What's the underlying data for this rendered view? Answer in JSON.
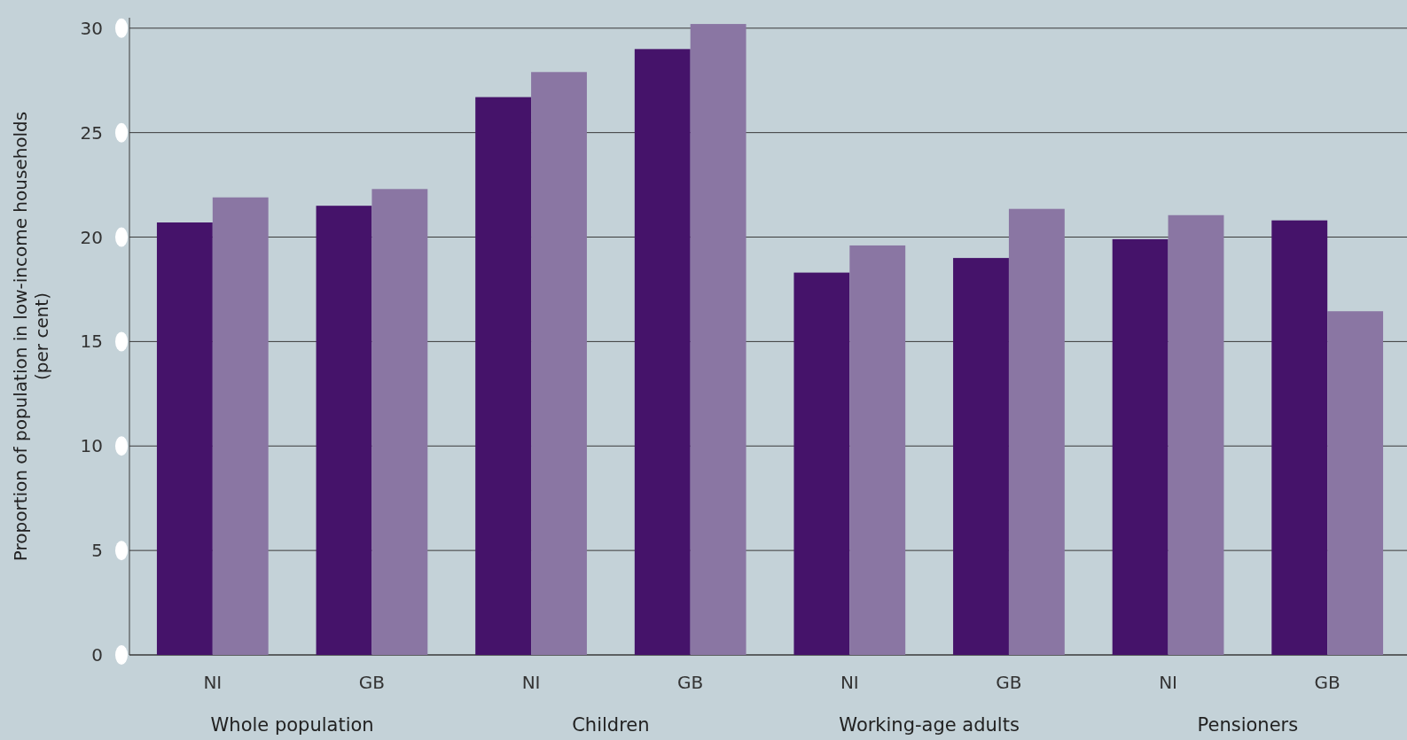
{
  "chart_data": {
    "type": "bar",
    "ylabel": "Proportion of population in low-income households\n(per cent)",
    "categories": [
      "NI",
      "GB",
      "NI",
      "GB",
      "NI",
      "GB",
      "NI",
      "GB"
    ],
    "series": [
      {
        "color": "#45136a",
        "values": [
          20.7,
          21.5,
          26.7,
          29.0,
          18.3,
          19.0,
          19.9,
          20.8
        ]
      },
      {
        "color": "#8a76a3",
        "values": [
          21.9,
          22.3,
          27.9,
          30.2,
          19.6,
          21.35,
          21.05,
          16.45
        ]
      }
    ],
    "ylim": [
      0,
      30.5
    ],
    "yticks": [
      0,
      5,
      10,
      15,
      20,
      25,
      30
    ],
    "grid": "y",
    "annotations": [
      "Whole population",
      "Children",
      "Working-age adults",
      "Pensioners"
    ]
  }
}
